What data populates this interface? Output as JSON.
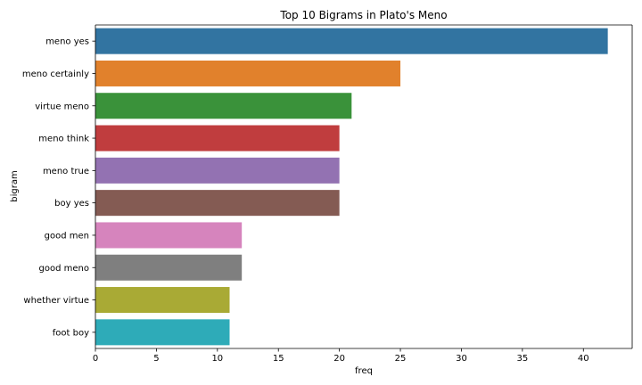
{
  "chart_data": {
    "type": "bar",
    "orientation": "horizontal",
    "title": "Top 10 Bigrams in Plato's Meno",
    "xlabel": "freq",
    "ylabel": "bigram",
    "xlim": [
      0,
      44
    ],
    "xticks": [
      0,
      5,
      10,
      15,
      20,
      25,
      30,
      35,
      40
    ],
    "grid": false,
    "categories": [
      "meno yes",
      "meno certainly",
      "virtue meno",
      "meno think",
      "meno true",
      "boy yes",
      "good men",
      "good meno",
      "whether virtue",
      "foot boy"
    ],
    "values": [
      42,
      25,
      21,
      20,
      20,
      20,
      12,
      12,
      11,
      11
    ],
    "colors": [
      "#3274a1",
      "#e1812c",
      "#3a923a",
      "#c03d3e",
      "#9372b2",
      "#845b53",
      "#d684bd",
      "#7f7f7f",
      "#a9aa35",
      "#2eabb8"
    ]
  }
}
